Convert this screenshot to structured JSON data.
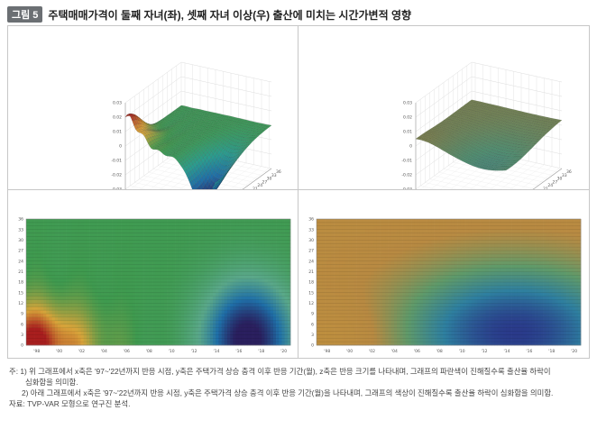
{
  "figure": {
    "badge": "그림 5",
    "title": "주택매매가격이 둘째 자녀(좌), 셋째 자녀 이상(우) 출산에 미치는 시간가변적 영향"
  },
  "notes": {
    "line1": "주: 1) 위 그래프에서 x축은 '97~'22년까지 반응 시점, y축은 주택가격 상승 충격 이후 반응 기간(월), z축은 반응 크기를 나타내며, 그래프의 파란색이 진해질수록 출산율 하락이",
    "line1b": "심화함을 의미함.",
    "line2": "2) 아래 그래프에서 x축은 '97~'22년까지 반응 시점, y축은 주택가격 상승 충격 이후 반응 기간(월)을 나타내며, 그래프의 색상이 진해질수록 출산율 하락이 심화함을 의미함.",
    "source": "자료: TVP-VAR 모형으로 연구진 분석."
  },
  "chart_data": [
    {
      "type": "surface3d",
      "panel": "top-left",
      "x_ticks": [
        "'98",
        "'00",
        "'02",
        "'04",
        "'06",
        "'08",
        "'10",
        "'12",
        "'14",
        "'16",
        "'18",
        "'20"
      ],
      "y_ticks": [
        "0",
        "3",
        "6",
        "9",
        "12",
        "15",
        "18",
        "21",
        "24",
        "27",
        "30",
        "33",
        "36"
      ],
      "z_ticks": [
        "0.03",
        "0.02",
        "0.01",
        "0",
        "-0.01",
        "-0.02",
        "-0.03"
      ],
      "zlim": [
        -0.03,
        0.03
      ],
      "colors": [
        "#2a1f5e",
        "#1f6fa8",
        "#2a9d8f",
        "#3f9a4f",
        "#d8a43a",
        "#a8322a"
      ]
    },
    {
      "type": "surface3d",
      "panel": "top-right",
      "x_ticks": [
        "'98",
        "'00",
        "'02",
        "'04",
        "'06",
        "'08",
        "'10",
        "'12",
        "'14",
        "'16",
        "'18",
        "'20"
      ],
      "y_ticks": [
        "0",
        "3",
        "6",
        "9",
        "12",
        "15",
        "18",
        "21",
        "24",
        "27",
        "30",
        "33",
        "36"
      ],
      "z_ticks": [
        "0.03",
        "0.02",
        "0.01",
        "0",
        "-0.01",
        "-0.02",
        "-0.03"
      ],
      "zlim": [
        -0.03,
        0.03
      ],
      "colors": [
        "#2a2a6e",
        "#2e6f9a",
        "#4f8f70",
        "#8c7a40",
        "#b88a42"
      ]
    },
    {
      "type": "heatmap",
      "panel": "bottom-left",
      "x_ticks": [
        "'98",
        "'00",
        "'02",
        "'04",
        "'06",
        "'08",
        "'10",
        "'12",
        "'14",
        "'16",
        "'18",
        "'20"
      ],
      "y_ticks": [
        "0",
        "3",
        "6",
        "9",
        "12",
        "15",
        "18",
        "21",
        "24",
        "27",
        "30",
        "33",
        "36"
      ],
      "colors": [
        "#a81e1e",
        "#d8a43a",
        "#3f9a4f",
        "#5aa88a",
        "#1f6fa8",
        "#2a1f5e"
      ]
    },
    {
      "type": "heatmap",
      "panel": "bottom-right",
      "x_ticks": [
        "'98",
        "'00",
        "'02",
        "'04",
        "'06",
        "'08",
        "'10",
        "'12",
        "'14",
        "'16",
        "'18",
        "'20"
      ],
      "y_ticks": [
        "0",
        "3",
        "6",
        "9",
        "12",
        "15",
        "18",
        "21",
        "24",
        "27",
        "30",
        "33",
        "36"
      ],
      "colors": [
        "#c0903e",
        "#b88a42",
        "#5f9a6a",
        "#2e7fa0",
        "#2a3a8a"
      ]
    }
  ]
}
